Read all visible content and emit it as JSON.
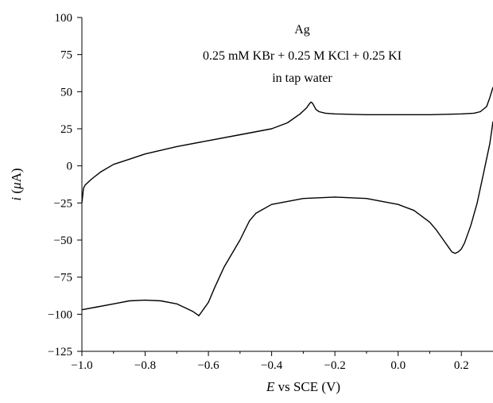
{
  "chart_data": {
    "type": "line",
    "title": "",
    "annotations": [
      "Ag",
      "0.25 mM KBr + 0.25 M KCl + 0.25 KI",
      "in tap water"
    ],
    "xlabel": {
      "italic": "E",
      "rest": " vs SCE (V)"
    },
    "ylabel": {
      "italic": "i",
      "rest": " (",
      "mu": "μ",
      "unit": "A)"
    },
    "xlim": [
      -1.0,
      0.3
    ],
    "ylim": [
      -125,
      100
    ],
    "xticks": [
      -1.0,
      -0.8,
      -0.6,
      -0.4,
      -0.2,
      0.0,
      0.2
    ],
    "xtick_labels": [
      "−1.0",
      "−0.8",
      "−0.6",
      "−0.4",
      "−0.2",
      "0.0",
      "0.2"
    ],
    "yticks": [
      100,
      75,
      50,
      25,
      0,
      -25,
      -50,
      -75,
      -100,
      -125
    ],
    "ytick_labels": [
      "100",
      "75",
      "50",
      "25",
      "0",
      "−25",
      "−50",
      "−75",
      "−100",
      "−125"
    ],
    "grid": false,
    "legend": "none",
    "series": [
      {
        "x": [
          -1.0,
          -0.995,
          -0.99,
          -0.97,
          -0.94,
          -0.9,
          -0.85,
          -0.8,
          -0.7,
          -0.6,
          -0.5,
          -0.4,
          -0.35,
          -0.31,
          -0.29,
          -0.28,
          -0.275,
          -0.27,
          -0.26,
          -0.25,
          -0.23,
          -0.2,
          -0.1,
          0.0,
          0.1,
          0.2,
          0.24,
          0.26,
          0.28,
          0.29,
          0.3
        ],
        "y": [
          -25,
          -15,
          -13,
          -9,
          -4,
          1,
          4.5,
          8,
          13,
          17,
          21,
          25,
          29,
          35,
          39,
          42,
          43,
          42,
          38,
          36.5,
          35.5,
          35,
          34.5,
          34.5,
          34.5,
          35,
          35.5,
          36.5,
          40,
          46,
          53
        ]
      },
      {
        "x": [
          0.3,
          0.29,
          0.27,
          0.25,
          0.23,
          0.21,
          0.2,
          0.19,
          0.18,
          0.17,
          0.16,
          0.14,
          0.12,
          0.1,
          0.05,
          0.0,
          -0.1,
          -0.2,
          -0.3,
          -0.4,
          -0.45,
          -0.47,
          -0.5,
          -0.55,
          -0.58,
          -0.6,
          -0.62,
          -0.63,
          -0.65,
          -0.7,
          -0.75,
          -0.8,
          -0.85,
          -0.9,
          -0.95,
          -1.0
        ],
        "y": [
          30,
          15,
          -5,
          -25,
          -40,
          -52,
          -56,
          -58,
          -59,
          -58,
          -55,
          -49,
          -43,
          -38,
          -30,
          -26,
          -22,
          -21,
          -22,
          -26,
          -32,
          -37,
          -50,
          -68,
          -82,
          -92,
          -98,
          -101,
          -98,
          -93,
          -91,
          -90.5,
          -91,
          -93,
          -95,
          -97
        ]
      }
    ]
  }
}
